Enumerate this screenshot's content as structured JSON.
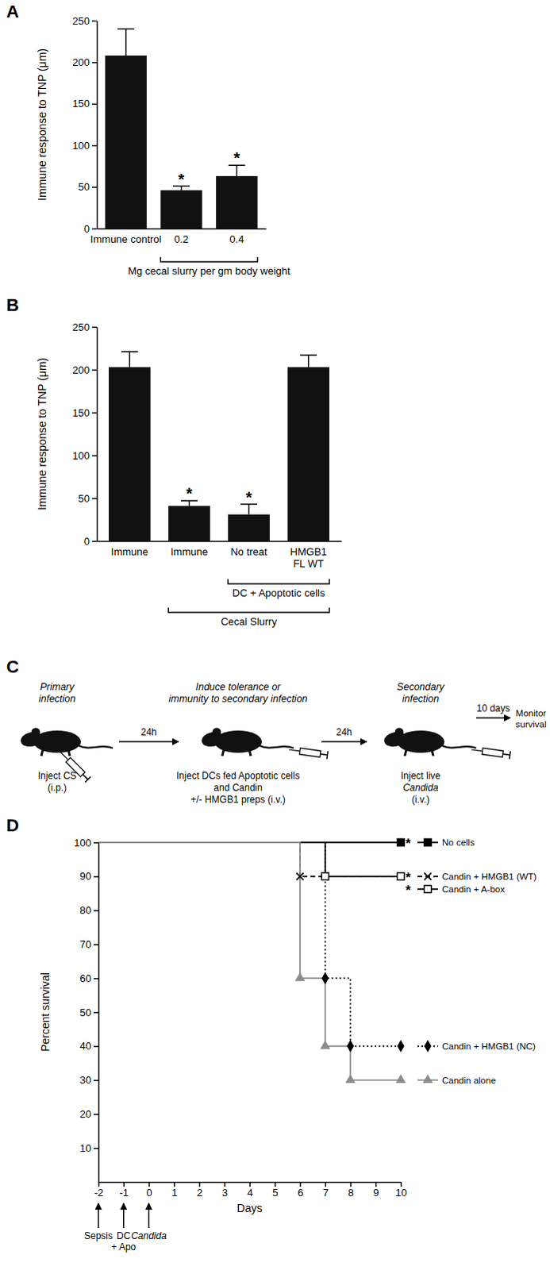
{
  "chart_data": [
    {
      "panel": "A",
      "type": "bar",
      "y_label": "Immune response to TNP (μm)",
      "categories": [
        "Immune control",
        "0.2",
        "0.4"
      ],
      "values": [
        208,
        46,
        63
      ],
      "errors": [
        32,
        5,
        13
      ],
      "value_annotations": [
        null,
        "*",
        "*"
      ],
      "groups": [
        {
          "label": "Mg cecal slurry per gm body weight",
          "from": 1,
          "to": 2
        }
      ],
      "color": "#111111",
      "ylim": [
        0,
        250
      ],
      "yticks": [
        0,
        50,
        100,
        150,
        200,
        250
      ]
    },
    {
      "panel": "B",
      "type": "bar",
      "y_label": "Immune response to TNP (μm)",
      "categories": [
        "Immune",
        "Immune",
        "No treat",
        "HMGB1 FL WT"
      ],
      "values": [
        203,
        41,
        31,
        203
      ],
      "errors": [
        18,
        6,
        12,
        14
      ],
      "value_annotations": [
        null,
        "*",
        "*",
        null
      ],
      "groups": [
        {
          "label": "DC + Apoptotic cells",
          "from": 2,
          "to": 3
        },
        {
          "label": "Cecal Slurry",
          "from": 1,
          "to": 3
        }
      ],
      "color": "#111111",
      "ylim": [
        0,
        250
      ],
      "yticks": [
        0,
        50,
        100,
        150,
        200,
        250
      ]
    },
    {
      "panel": "D",
      "type": "line",
      "x_label": "Days",
      "y_label": "Percent survival",
      "xlim": [
        -2,
        10
      ],
      "xticks": [
        -2,
        -1,
        0,
        1,
        2,
        3,
        4,
        5,
        6,
        7,
        8,
        9,
        10
      ],
      "ylim": [
        0,
        100
      ],
      "yticks": [
        10,
        20,
        30,
        40,
        50,
        60,
        70,
        80,
        90,
        100
      ],
      "legend": "right",
      "series": [
        {
          "name": "No cells",
          "color": "#000000",
          "marker": "square",
          "line_style": "solid",
          "significance": "*",
          "x": [
            -2,
            10
          ],
          "values": [
            100,
            100
          ]
        },
        {
          "name": "Candin + HMGB1 (WT)",
          "color": "#000000",
          "marker": "x",
          "line_style": "dashed",
          "significance": "*",
          "x": [
            -2,
            6,
            10
          ],
          "values": [
            100,
            90,
            90
          ]
        },
        {
          "name": "Candin + A-box",
          "color": "#000000",
          "marker": "open-square",
          "line_style": "solid",
          "significance": "*",
          "x": [
            -2,
            7,
            10
          ],
          "values": [
            100,
            90,
            90
          ]
        },
        {
          "name": "Candin + HMGB1 (NC)",
          "color": "#000000",
          "marker": "diamond",
          "line_style": "dotted",
          "x": [
            -2,
            7,
            8,
            10
          ],
          "values": [
            100,
            60,
            40,
            40
          ]
        },
        {
          "name": "Candin alone",
          "color": "#8c8c8c",
          "marker": "triangle",
          "line_style": "solid",
          "x": [
            -2,
            6,
            7,
            8,
            10
          ],
          "values": [
            100,
            60,
            40,
            30,
            30
          ]
        }
      ],
      "x_annotations": [
        {
          "x": -2,
          "lines": [
            "Sepsis"
          ]
        },
        {
          "x": -1,
          "lines": [
            "DC",
            "+ Apo"
          ]
        },
        {
          "x": 0,
          "lines": [
            "Candida"
          ],
          "italic": true
        }
      ]
    }
  ],
  "diagram": {
    "panel": "C",
    "steps": [
      {
        "title": [
          "Primary",
          "infection"
        ],
        "action": [
          "Inject CS",
          "(i.p.)"
        ]
      },
      {
        "title": [
          "Induce tolerance or",
          "immunity to secondary infection"
        ],
        "action": [
          "Inject DCs fed Apoptotic cells",
          "and Candin",
          "+/- HMGB1 preps (i.v.)"
        ]
      },
      {
        "title": [
          "Secondary",
          "infection"
        ],
        "action": [
          "Inject live",
          {
            "text": "Candida",
            "italic": true
          },
          "(i.v.)"
        ]
      }
    ],
    "arrows": [
      "24h",
      "24h",
      "10 days"
    ],
    "end": [
      "Monitor",
      "survival"
    ]
  }
}
